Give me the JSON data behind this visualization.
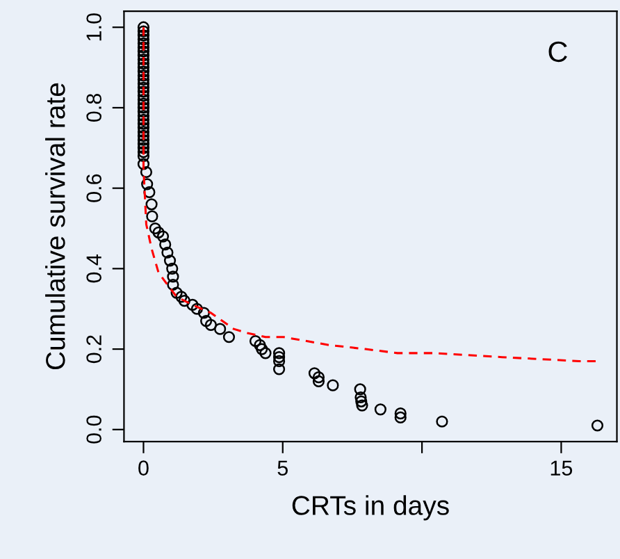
{
  "chart_data": {
    "type": "scatter",
    "xlabel": "CRTs in days",
    "ylabel": "Cumulative survival rate",
    "annotations": [
      "C"
    ],
    "xlim": [
      -0.7,
      17.0
    ],
    "ylim": [
      -0.03,
      1.04
    ],
    "xticks": [
      0,
      5,
      {
        "value": 10,
        "label": null
      },
      15
    ],
    "yticks": [
      {
        "value": 0,
        "label": "0.0"
      },
      0.2,
      0.4,
      0.6,
      0.8,
      {
        "value": 1,
        "label": "1.0"
      }
    ],
    "grid": false,
    "series": [
      {
        "marker": "circle",
        "color": "#000000",
        "x": [
          0,
          0,
          0,
          0,
          0,
          0,
          0,
          0,
          0,
          0,
          0,
          0,
          0,
          0,
          0,
          0,
          0,
          0,
          0,
          0,
          0,
          0,
          0,
          0,
          0,
          0,
          0,
          0,
          0,
          0,
          0,
          0,
          0,
          0,
          0.1,
          0.13,
          0.21,
          0.29,
          0.31,
          0.42,
          0.54,
          0.7,
          0.78,
          0.86,
          0.95,
          1.03,
          1.06,
          1.06,
          1.19,
          1.36,
          1.47,
          1.76,
          1.92,
          2.17,
          2.25,
          2.42,
          2.75,
          3.07,
          4.02,
          4.18,
          4.25,
          4.38,
          4.87,
          4.87,
          4.87,
          4.87,
          6.14,
          6.29,
          6.29,
          6.8,
          7.78,
          7.8,
          7.82,
          7.85,
          8.51,
          9.23,
          9.23,
          10.72,
          16.3
        ],
        "values": [
          1.0,
          0.99,
          0.98,
          0.97,
          0.96,
          0.95,
          0.94,
          0.93,
          0.92,
          0.91,
          0.9,
          0.89,
          0.88,
          0.87,
          0.86,
          0.85,
          0.84,
          0.83,
          0.82,
          0.81,
          0.8,
          0.79,
          0.78,
          0.77,
          0.76,
          0.75,
          0.74,
          0.73,
          0.72,
          0.71,
          0.7,
          0.69,
          0.68,
          0.66,
          0.64,
          0.61,
          0.59,
          0.56,
          0.53,
          0.5,
          0.49,
          0.48,
          0.46,
          0.44,
          0.42,
          0.4,
          0.38,
          0.36,
          0.34,
          0.33,
          0.32,
          0.31,
          0.3,
          0.29,
          0.27,
          0.26,
          0.25,
          0.23,
          0.22,
          0.21,
          0.2,
          0.19,
          0.19,
          0.18,
          0.17,
          0.15,
          0.14,
          0.13,
          0.12,
          0.11,
          0.1,
          0.08,
          0.07,
          0.06,
          0.05,
          0.04,
          0.03,
          0.02,
          0.01
        ]
      },
      {
        "type": "line",
        "line_style": "dashed",
        "marker": "none",
        "color": "#ff0000",
        "x": [
          0,
          0,
          0.05,
          0.1,
          0.29,
          0.54,
          0.86,
          1.19,
          1.76,
          2.42,
          3.24,
          3.73,
          4.38,
          4.87,
          5.03,
          6.67,
          7.97,
          9.12,
          10.43,
          12.88,
          15.65,
          16.3
        ],
        "values": [
          1.0,
          0.65,
          0.58,
          0.51,
          0.45,
          0.39,
          0.36,
          0.33,
          0.31,
          0.29,
          0.25,
          0.24,
          0.23,
          0.23,
          0.23,
          0.21,
          0.2,
          0.19,
          0.19,
          0.18,
          0.17,
          0.17
        ]
      }
    ]
  }
}
